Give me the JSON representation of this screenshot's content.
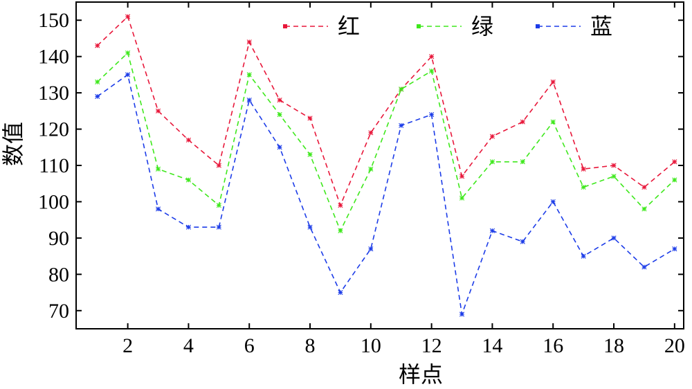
{
  "chart_data": {
    "type": "line",
    "xlabel": "样点",
    "ylabel": "数值",
    "x": [
      1,
      2,
      3,
      4,
      5,
      6,
      7,
      8,
      9,
      10,
      11,
      12,
      13,
      14,
      15,
      16,
      17,
      18,
      19,
      20
    ],
    "xticks": [
      2,
      4,
      6,
      8,
      10,
      12,
      14,
      16,
      18,
      20
    ],
    "yticks": [
      70,
      80,
      90,
      100,
      110,
      120,
      130,
      140,
      150
    ],
    "xlim": [
      0.3,
      20.3
    ],
    "ylim": [
      65,
      155
    ],
    "grid": false,
    "legend_position": "top-right",
    "line_style": "dashed",
    "series": [
      {
        "name": "红",
        "color": "#e8173a",
        "values": [
          143,
          151,
          125,
          117,
          110,
          144,
          128,
          123,
          99,
          119,
          131,
          140,
          107,
          118,
          122,
          133,
          109,
          110,
          104,
          111
        ]
      },
      {
        "name": "绿",
        "color": "#3ee81c",
        "values": [
          133,
          141,
          109,
          106,
          99,
          135,
          124,
          113,
          92,
          109,
          131,
          136,
          101,
          111,
          111,
          122,
          104,
          107,
          98,
          106
        ]
      },
      {
        "name": "蓝",
        "color": "#1c3ce8",
        "values": [
          129,
          135,
          98,
          93,
          93,
          128,
          115,
          93,
          75,
          87,
          121,
          124,
          69,
          92,
          89,
          100,
          85,
          90,
          82,
          87
        ]
      }
    ]
  }
}
